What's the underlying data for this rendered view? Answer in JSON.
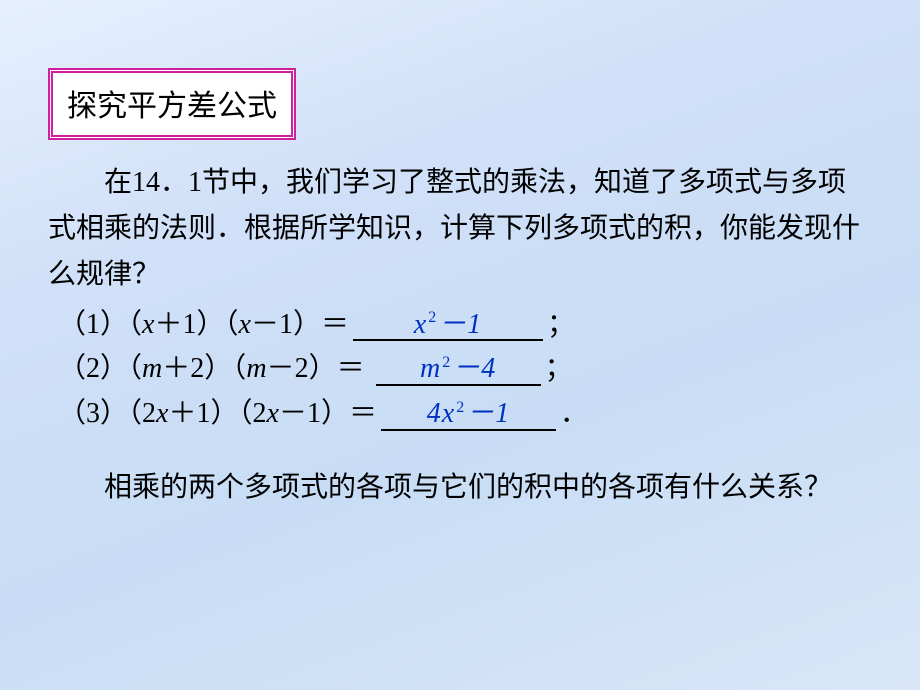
{
  "page": {
    "background_gradient": [
      "#e6f0ff",
      "#d0e0f8",
      "#c8ddf5",
      "#d8e6f8"
    ],
    "title_border_color": "#d020a0",
    "answer_color": "#0030c0",
    "body_font_size": 28
  },
  "title": "探究平方差公式",
  "intro": "在14．1节中，我们学习了整式的乘法，知道了多项式与多项式相乘的法则．根据所学知识，计算下列多项式的积，你能发现什么规律？",
  "equations": [
    {
      "label": "（1）",
      "left_open": "（",
      "a1_var": "x",
      "a1_op": "＋",
      "a1_num": "1",
      "mid_close": "）",
      "mid_open": "（",
      "a2_var": "x",
      "a2_op": "－",
      "a2_num": "1",
      "right_close": "）＝",
      "ans_pre": "x",
      "ans_sup": "2",
      "ans_post": "－1",
      "tail": "；",
      "blank_width": 190
    },
    {
      "label": "（2）",
      "left_open": "（",
      "a1_var": "m",
      "a1_op": "＋",
      "a1_num": "2",
      "mid_close": "）",
      "mid_open": "（",
      "a2_var": "m",
      "a2_op": "－",
      "a2_num": "2",
      "right_close": "）＝ ",
      "ans_pre": "m",
      "ans_sup": "2",
      "ans_post": "－4",
      "tail": "；",
      "blank_width": 165
    },
    {
      "label": "（3）",
      "left_open": "（",
      "a1_coef": "2",
      "a1_var": "x",
      "a1_op": "＋",
      "a1_num": "1",
      "mid_close": "）",
      "mid_open": "（",
      "a2_coef": "2",
      "a2_var": "x",
      "a2_op": "－",
      "a2_num": "1",
      "right_close": "）＝",
      "ans_pre": "4x",
      "ans_sup": "2",
      "ans_post": "－1",
      "tail": "．",
      "blank_width": 175
    }
  ],
  "question": "相乘的两个多项式的各项与它们的积中的各项有什么关系？"
}
